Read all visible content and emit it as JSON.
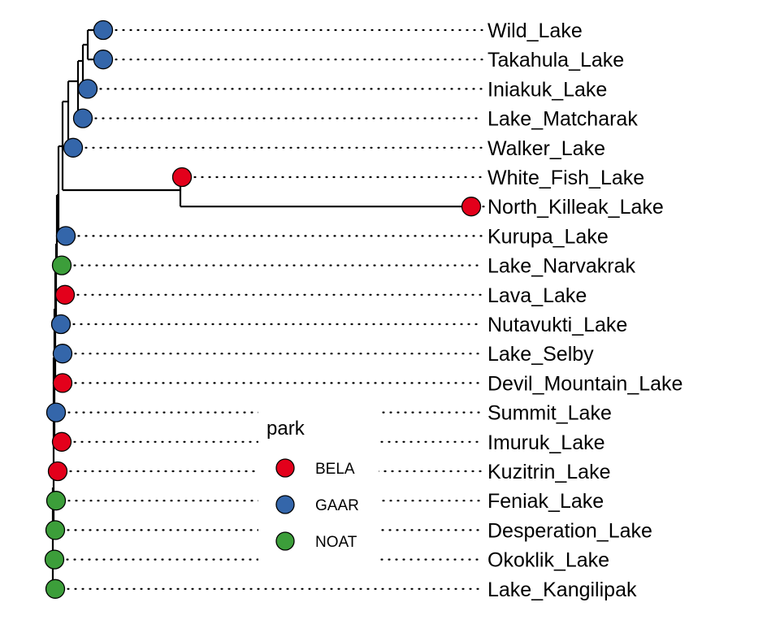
{
  "colors": {
    "BELA": "#e3001b",
    "GAAR": "#3466aa",
    "NOAT": "#3c9e3a"
  },
  "tips": [
    {
      "label": "Wild_Lake",
      "park": "GAAR"
    },
    {
      "label": "Takahula_Lake",
      "park": "GAAR"
    },
    {
      "label": "Iniakuk_Lake",
      "park": "GAAR"
    },
    {
      "label": "Lake_Matcharak",
      "park": "GAAR"
    },
    {
      "label": "Walker_Lake",
      "park": "GAAR"
    },
    {
      "label": "White_Fish_Lake",
      "park": "BELA"
    },
    {
      "label": "North_Killeak_Lake",
      "park": "BELA"
    },
    {
      "label": "Kurupa_Lake",
      "park": "GAAR"
    },
    {
      "label": "Lake_Narvakrak",
      "park": "NOAT"
    },
    {
      "label": "Lava_Lake",
      "park": "BELA"
    },
    {
      "label": "Nutavukti_Lake",
      "park": "GAAR"
    },
    {
      "label": "Lake_Selby",
      "park": "GAAR"
    },
    {
      "label": "Devil_Mountain_Lake",
      "park": "BELA"
    },
    {
      "label": "Summit_Lake",
      "park": "GAAR"
    },
    {
      "label": "Imuruk_Lake",
      "park": "BELA"
    },
    {
      "label": "Kuzitrin_Lake",
      "park": "BELA"
    },
    {
      "label": "Feniak_Lake",
      "park": "NOAT"
    },
    {
      "label": "Desperation_Lake",
      "park": "NOAT"
    },
    {
      "label": "Okoklik_Lake",
      "park": "NOAT"
    },
    {
      "label": "Lake_Kangilipak",
      "park": "NOAT"
    }
  ],
  "legend": {
    "title": "park",
    "items": [
      {
        "label": "BELA",
        "park": "BELA"
      },
      {
        "label": "GAAR",
        "park": "GAAR"
      },
      {
        "label": "NOAT",
        "park": "NOAT"
      }
    ]
  }
}
